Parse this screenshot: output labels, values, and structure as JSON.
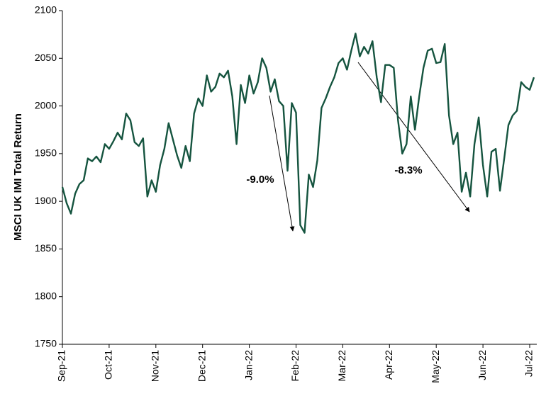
{
  "chart_data": {
    "type": "line",
    "y_label": "MSCI UK IMI Total Return",
    "color": "#15543f",
    "ylim": [
      1750,
      2100
    ],
    "yticks": [
      1750,
      1800,
      1850,
      1900,
      1950,
      2000,
      2050,
      2100
    ],
    "categories": [
      "Sep-21",
      null,
      null,
      null,
      null,
      null,
      null,
      null,
      null,
      null,
      null,
      "Oct-21",
      null,
      null,
      null,
      null,
      null,
      null,
      null,
      null,
      null,
      null,
      "Nov-21",
      null,
      null,
      null,
      null,
      null,
      null,
      null,
      null,
      null,
      null,
      "Dec-21",
      null,
      null,
      null,
      null,
      null,
      null,
      null,
      null,
      null,
      null,
      "Jan-22",
      null,
      null,
      null,
      null,
      null,
      null,
      null,
      null,
      null,
      null,
      "Feb-22",
      null,
      null,
      null,
      null,
      null,
      null,
      null,
      null,
      null,
      null,
      "Mar-22",
      null,
      null,
      null,
      null,
      null,
      null,
      null,
      null,
      null,
      null,
      "Apr-22",
      null,
      null,
      null,
      null,
      null,
      null,
      null,
      null,
      null,
      null,
      "May-22",
      null,
      null,
      null,
      null,
      null,
      null,
      null,
      null,
      null,
      null,
      "Jun-22",
      null,
      null,
      null,
      null,
      null,
      null,
      null,
      null,
      null,
      null,
      "Jul-22",
      null
    ],
    "values": [
      1915,
      1898,
      1887,
      1908,
      1918,
      1922,
      1945,
      1942,
      1947,
      1941,
      1960,
      1955,
      1963,
      1972,
      1965,
      1992,
      1985,
      1962,
      1958,
      1966,
      1905,
      1922,
      1910,
      1938,
      1955,
      1982,
      1965,
      1948,
      1935,
      1958,
      1942,
      1992,
      2008,
      2000,
      2032,
      2015,
      2020,
      2034,
      2030,
      2037,
      2010,
      1960,
      2022,
      2003,
      2032,
      2013,
      2025,
      2050,
      2040,
      2015,
      2028,
      2005,
      2000,
      1932,
      2003,
      1993,
      1875,
      1867,
      1928,
      1915,
      1943,
      1998,
      2008,
      2020,
      2030,
      2045,
      2050,
      2038,
      2058,
      2076,
      2052,
      2062,
      2055,
      2068,
      2030,
      2004,
      2043,
      2043,
      2040,
      1985,
      1950,
      1960,
      2010,
      1975,
      2010,
      2040,
      2058,
      2060,
      2045,
      2046,
      2065,
      1990,
      1960,
      1972,
      1910,
      1930,
      1905,
      1960,
      1988,
      1938,
      1905,
      1952,
      1955,
      1911,
      1945,
      1980,
      1990,
      1995,
      2025,
      2020,
      2017,
      2030
    ],
    "annotations": [
      {
        "text": "-9.0%"
      },
      {
        "text": "-8.3%"
      }
    ]
  }
}
